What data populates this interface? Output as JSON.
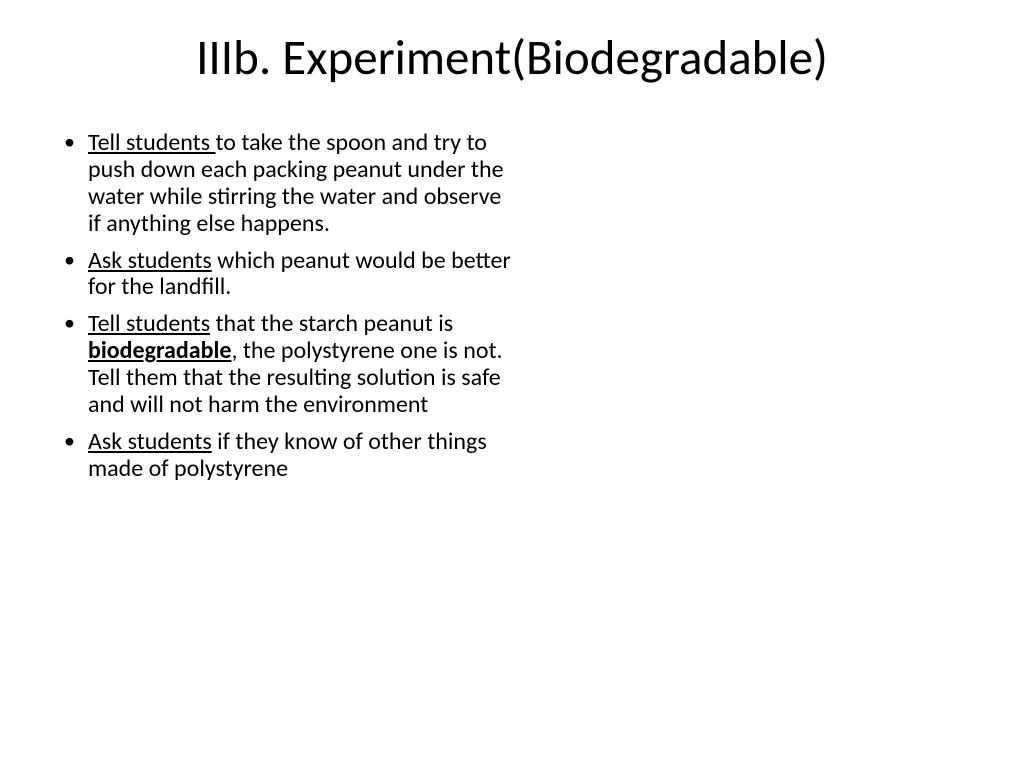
{
  "slide": {
    "title": "IIIb. Experiment(Biodegradable)",
    "background_color": "#ffffff",
    "text_color": "#000000",
    "title_fontsize": 49,
    "body_fontsize": 24,
    "bullets": [
      {
        "lead_underlined": "Tell students ",
        "rest_before": "to take the spoon and try to push down each packing peanut under the water while stirring the water and observe if anything else happens.",
        "bold_word": "",
        "rest_after": ""
      },
      {
        "lead_underlined": "Ask students",
        "rest_before": " which peanut would be better for the landfill.",
        "bold_word": "",
        "rest_after": ""
      },
      {
        "lead_underlined": "Tell students",
        "rest_before": " that the starch peanut is ",
        "bold_word": "biodegradable",
        "rest_after": ", the polystyrene one is not. Tell them that the resulting solution is safe and will not harm the environment"
      },
      {
        "lead_underlined": "Ask students",
        "rest_before": " if they know of other things made of polystyrene",
        "bold_word": "",
        "rest_after": ""
      }
    ]
  }
}
